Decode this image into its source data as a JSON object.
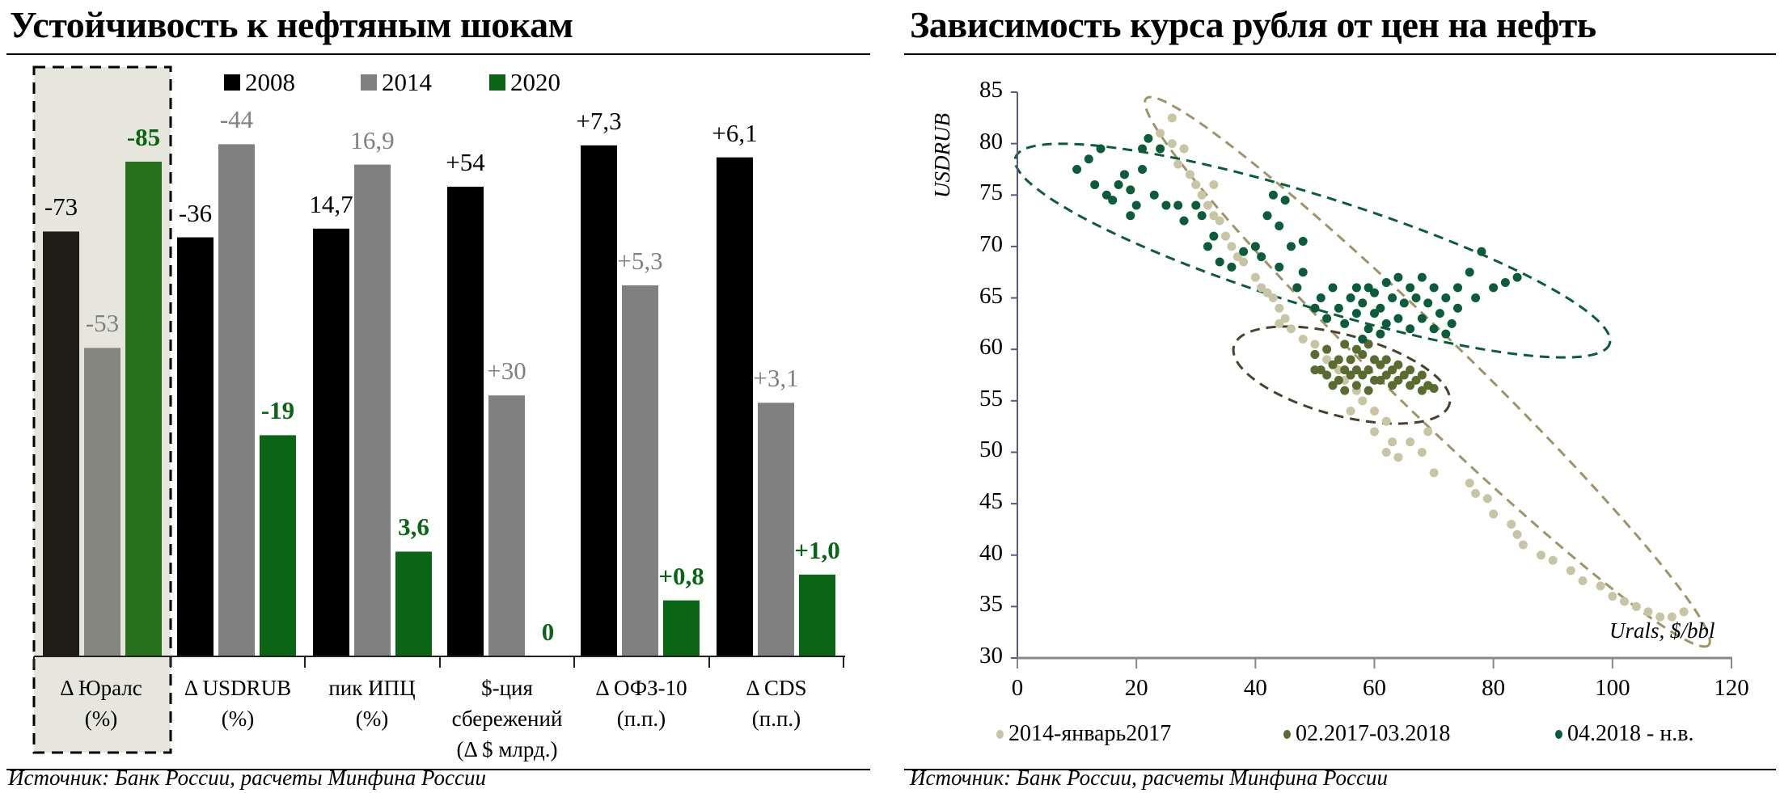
{
  "left": {
    "title": "Устойчивость к нефтяным шокам",
    "source": "Источник:  Банк России, расчеты Минфина России"
  },
  "right": {
    "title": "Зависимость курса рубля от цен на нефть",
    "source": "Источник:  Банк России, расчеты Минфина России"
  },
  "chart_data": [
    {
      "type": "bar",
      "legend_position": "top",
      "highlighted_category": "Δ Юралс (%)",
      "categories": [
        [
          "Δ Юралс",
          "(%)"
        ],
        [
          "Δ USDRUB",
          "(%)"
        ],
        [
          "пик ИПЦ",
          "(%)"
        ],
        [
          "$-ция",
          "сбережений",
          "(Δ $ млрд.)"
        ],
        [
          "Δ ОФЗ-10",
          "(п.п.)"
        ],
        [
          "Δ CDS",
          "(п.п.)"
        ]
      ],
      "series": [
        {
          "name": "2008",
          "color": "#000000",
          "values": [
            73,
            36,
            14.7,
            54,
            7.3,
            6.1
          ],
          "labels": [
            "-73",
            "-36",
            "14,7",
            "+54",
            "+7,3",
            "+6,1"
          ]
        },
        {
          "name": "2014",
          "color": "#808080",
          "values": [
            53,
            44,
            16.9,
            30,
            5.3,
            3.1
          ],
          "labels": [
            "-53",
            "-44",
            "16,9",
            "+30",
            "+5,3",
            "+3,1"
          ]
        },
        {
          "name": "2020",
          "color": "#0a6614",
          "values": [
            85,
            19,
            3.6,
            0,
            0.8,
            1.0
          ],
          "labels": [
            "-85",
            "-19",
            "3,6",
            "0",
            "+0,8",
            "+1,0"
          ]
        }
      ]
    },
    {
      "type": "scatter",
      "xlabel": "Urals, $/bbl",
      "ylabel": "USDRUB",
      "xlim": [
        0,
        120
      ],
      "ylim": [
        30,
        85
      ],
      "xticks": [
        "0",
        "20",
        "40",
        "60",
        "80",
        "100",
        "120"
      ],
      "yticks": [
        "30",
        "35",
        "40",
        "45",
        "50",
        "55",
        "60",
        "65",
        "70",
        "75",
        "80",
        "85"
      ],
      "grid": false,
      "legend_position": "bottom",
      "series": [
        {
          "name": "2014-январь2017",
          "color": "#c8c5a4",
          "ellipse_color": "#9e9468",
          "points": [
            [
              26,
              82.5
            ],
            [
              24,
              81
            ],
            [
              26,
              80
            ],
            [
              28,
              79.5
            ],
            [
              27,
              78
            ],
            [
              29,
              77
            ],
            [
              30,
              76
            ],
            [
              31,
              75
            ],
            [
              32,
              74
            ],
            [
              33,
              73
            ],
            [
              34,
              72.5
            ],
            [
              35,
              71
            ],
            [
              36,
              70
            ],
            [
              37,
              69
            ],
            [
              38,
              68.5
            ],
            [
              36,
              68
            ],
            [
              40,
              67
            ],
            [
              41,
              66
            ],
            [
              42,
              65.5
            ],
            [
              43,
              65
            ],
            [
              44,
              64
            ],
            [
              45,
              63
            ],
            [
              44,
              62.5
            ],
            [
              46,
              62
            ],
            [
              48,
              61
            ],
            [
              50,
              60.5
            ],
            [
              52,
              59
            ],
            [
              54,
              58
            ],
            [
              55,
              57
            ],
            [
              57,
              56
            ],
            [
              58,
              55
            ],
            [
              56,
              54
            ],
            [
              60,
              54
            ],
            [
              62,
              53
            ],
            [
              60,
              52
            ],
            [
              63,
              51
            ],
            [
              62,
              50
            ],
            [
              64,
              49.5
            ],
            [
              66,
              51
            ],
            [
              68,
              50
            ],
            [
              70,
              48
            ],
            [
              69,
              52
            ],
            [
              76,
              47
            ],
            [
              77,
              46
            ],
            [
              79,
              45.5
            ],
            [
              80,
              44
            ],
            [
              83,
              43
            ],
            [
              84,
              42
            ],
            [
              85,
              41
            ],
            [
              88,
              40
            ],
            [
              90,
              39.5
            ],
            [
              93,
              38.5
            ],
            [
              95,
              37.5
            ],
            [
              98,
              37
            ],
            [
              100,
              36
            ],
            [
              102,
              35.5
            ],
            [
              104,
              35
            ],
            [
              106,
              34.5
            ],
            [
              108,
              34
            ],
            [
              110,
              34
            ],
            [
              112,
              34.5
            ],
            [
              47,
              66
            ],
            [
              50,
              64
            ],
            [
              52,
              63
            ],
            [
              40,
              70
            ],
            [
              33,
              76
            ]
          ]
        },
        {
          "name": "02.2017-03.2018",
          "color": "#5a6b30",
          "ellipse_color": "#4a4030",
          "points": [
            [
              50,
              59.5
            ],
            [
              51,
              58
            ],
            [
              52,
              57.5
            ],
            [
              52,
              60
            ],
            [
              53,
              58.5
            ],
            [
              54,
              57
            ],
            [
              54,
              59
            ],
            [
              55,
              58
            ],
            [
              55,
              60.5
            ],
            [
              56,
              57.5
            ],
            [
              56,
              59
            ],
            [
              57,
              58
            ],
            [
              57,
              56.5
            ],
            [
              58,
              57.5
            ],
            [
              58,
              59.5
            ],
            [
              59,
              58
            ],
            [
              59,
              56
            ],
            [
              60,
              57
            ],
            [
              60,
              59
            ],
            [
              61,
              58.5
            ],
            [
              61,
              57
            ],
            [
              62,
              57.5
            ],
            [
              62,
              59
            ],
            [
              63,
              58
            ],
            [
              63,
              56.5
            ],
            [
              64,
              57
            ],
            [
              64,
              58.5
            ],
            [
              65,
              57.5
            ],
            [
              66,
              58
            ],
            [
              66,
              56.5
            ],
            [
              67,
              57
            ],
            [
              68,
              57.5
            ],
            [
              68,
              56
            ],
            [
              69,
              56.5
            ],
            [
              70,
              56.2
            ],
            [
              53,
              56.5
            ],
            [
              55,
              56
            ],
            [
              57,
              60
            ],
            [
              59,
              60.5
            ],
            [
              50,
              58
            ]
          ]
        },
        {
          "name": "04.2018 - н.в.",
          "color": "#0a5c3a",
          "ellipse_color": "#0a5c3a",
          "points": [
            [
              10,
              77.5
            ],
            [
              12,
              78.5
            ],
            [
              14,
              79.5
            ],
            [
              13,
              76
            ],
            [
              15,
              75
            ],
            [
              16,
              74.5
            ],
            [
              17,
              76
            ],
            [
              18,
              77
            ],
            [
              19,
              75.5
            ],
            [
              19,
              73
            ],
            [
              20,
              74
            ],
            [
              21,
              79.5
            ],
            [
              21,
              77.5
            ],
            [
              22,
              80.5
            ],
            [
              24,
              79.5
            ],
            [
              23,
              75
            ],
            [
              25,
              74
            ],
            [
              27,
              74
            ],
            [
              28,
              72.5
            ],
            [
              30,
              74
            ],
            [
              31,
              73
            ],
            [
              32,
              70
            ],
            [
              33,
              71
            ],
            [
              34,
              68.5
            ],
            [
              36,
              68
            ],
            [
              38,
              69.5
            ],
            [
              40,
              70
            ],
            [
              41,
              69
            ],
            [
              42,
              73
            ],
            [
              43,
              75
            ],
            [
              44,
              72
            ],
            [
              45,
              74.5
            ],
            [
              44,
              68
            ],
            [
              47,
              66
            ],
            [
              48,
              67.5
            ],
            [
              50,
              64
            ],
            [
              51,
              65
            ],
            [
              52,
              63
            ],
            [
              53,
              66
            ],
            [
              54,
              64
            ],
            [
              55,
              62.5
            ],
            [
              56,
              65
            ],
            [
              57,
              63.5
            ],
            [
              57,
              66
            ],
            [
              58,
              64.5
            ],
            [
              59,
              62
            ],
            [
              59,
              66
            ],
            [
              60,
              63.5
            ],
            [
              60,
              65.5
            ],
            [
              61,
              64
            ],
            [
              62,
              62.5
            ],
            [
              62,
              66.5
            ],
            [
              63,
              65
            ],
            [
              64,
              63
            ],
            [
              64,
              67
            ],
            [
              65,
              64.5
            ],
            [
              66,
              62
            ],
            [
              66,
              66
            ],
            [
              67,
              65
            ],
            [
              68,
              63
            ],
            [
              68,
              67
            ],
            [
              69,
              64.5
            ],
            [
              70,
              62
            ],
            [
              70,
              66
            ],
            [
              71,
              63.5
            ],
            [
              72,
              65
            ],
            [
              73,
              62.5
            ],
            [
              74,
              66
            ],
            [
              74,
              64
            ],
            [
              76,
              67.5
            ],
            [
              77,
              65
            ],
            [
              78,
              69.5
            ],
            [
              80,
              66
            ],
            [
              82,
              66.5
            ],
            [
              84,
              67
            ],
            [
              46,
              70
            ],
            [
              48,
              70.5
            ],
            [
              58,
              61
            ],
            [
              61,
              61.5
            ],
            [
              72,
              61.5
            ]
          ]
        }
      ]
    }
  ]
}
